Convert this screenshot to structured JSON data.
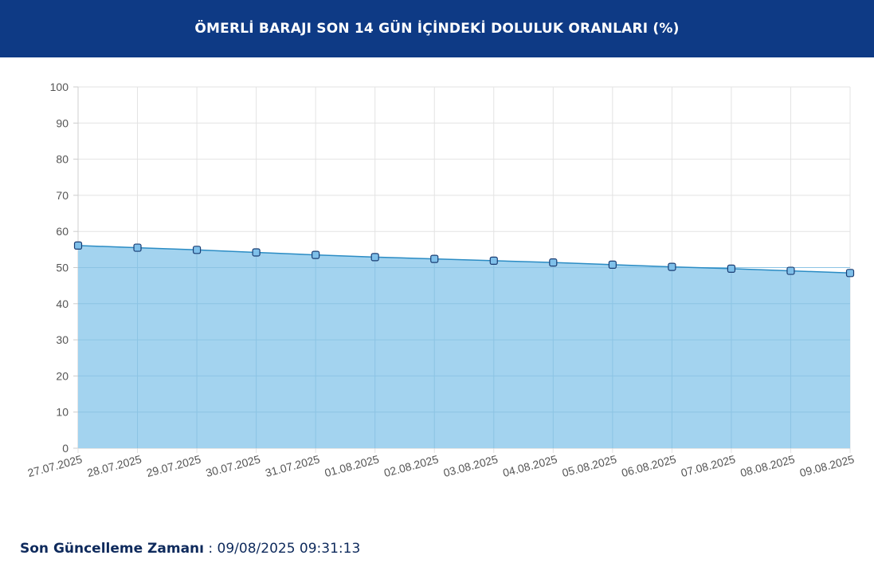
{
  "header": {
    "title": "ÖMERLİ BARAJI SON 14 GÜN İÇİNDEKİ DOLULUK ORANLARI (%)"
  },
  "footer": {
    "label": "Son Güncelleme Zamanı",
    "separator": " : ",
    "value": "09/08/2025 09:31:13"
  },
  "colors": {
    "header_bg": "#0e3a85",
    "line": "#2b8cc4",
    "fill": "#9ed1ee",
    "point_fill": "#7fc0ea",
    "point_stroke": "#1a3d73",
    "grid": "#e3e3e3"
  },
  "chart_data": {
    "type": "area",
    "x": [
      "27.07.2025",
      "28.07.2025",
      "29.07.2025",
      "30.07.2025",
      "31.07.2025",
      "01.08.2025",
      "02.08.2025",
      "03.08.2025",
      "04.08.2025",
      "05.08.2025",
      "06.08.2025",
      "07.08.2025",
      "08.08.2025",
      "09.08.2025"
    ],
    "series": [
      {
        "values": [
          56.1,
          55.5,
          54.9,
          54.2,
          53.5,
          52.9,
          52.4,
          51.9,
          51.4,
          50.8,
          50.2,
          49.7,
          49.1,
          48.5
        ]
      }
    ],
    "ylim": [
      0,
      100
    ],
    "yticks": [
      0,
      10,
      20,
      30,
      40,
      50,
      60,
      70,
      80,
      90,
      100
    ],
    "grid": true,
    "legend": "none"
  }
}
